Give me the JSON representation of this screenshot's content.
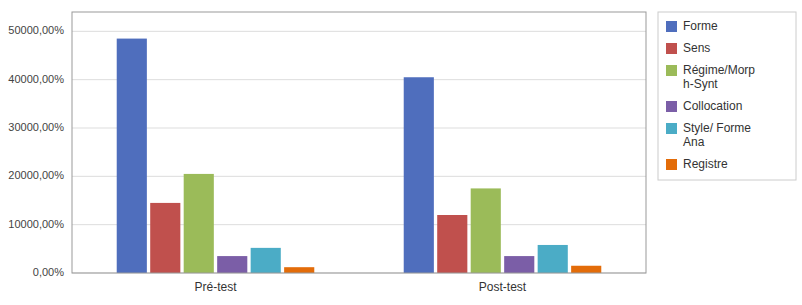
{
  "chart_data": {
    "type": "bar",
    "categories": [
      "Pré-test",
      "Post-test"
    ],
    "series": [
      {
        "name": "Forme",
        "color": "#4F6EBD",
        "values": [
          48500,
          40500
        ]
      },
      {
        "name": "Sens",
        "color": "#C0504D",
        "values": [
          14500,
          12000
        ]
      },
      {
        "name": "Régime/Morp\nh-Synt",
        "color": "#9BBB59",
        "values": [
          20500,
          17500
        ]
      },
      {
        "name": "Collocation",
        "color": "#7B5EA7",
        "values": [
          3500,
          3500
        ]
      },
      {
        "name": "Style/ Forme\nAna",
        "color": "#4BACC6",
        "values": [
          5200,
          5800
        ]
      },
      {
        "name": "Registre",
        "color": "#E36C09",
        "values": [
          1200,
          1500
        ]
      }
    ],
    "ylim": [
      0,
      54000
    ],
    "yticks": [
      {
        "value": 0,
        "label": "0,00%"
      },
      {
        "value": 10000,
        "label": "10000,00%"
      },
      {
        "value": 20000,
        "label": "20000,00%"
      },
      {
        "value": 30000,
        "label": "30000,00%"
      },
      {
        "value": 40000,
        "label": "40000,00%"
      },
      {
        "value": 50000,
        "label": "50000,00%"
      }
    ],
    "grid": true,
    "legend": "right"
  }
}
